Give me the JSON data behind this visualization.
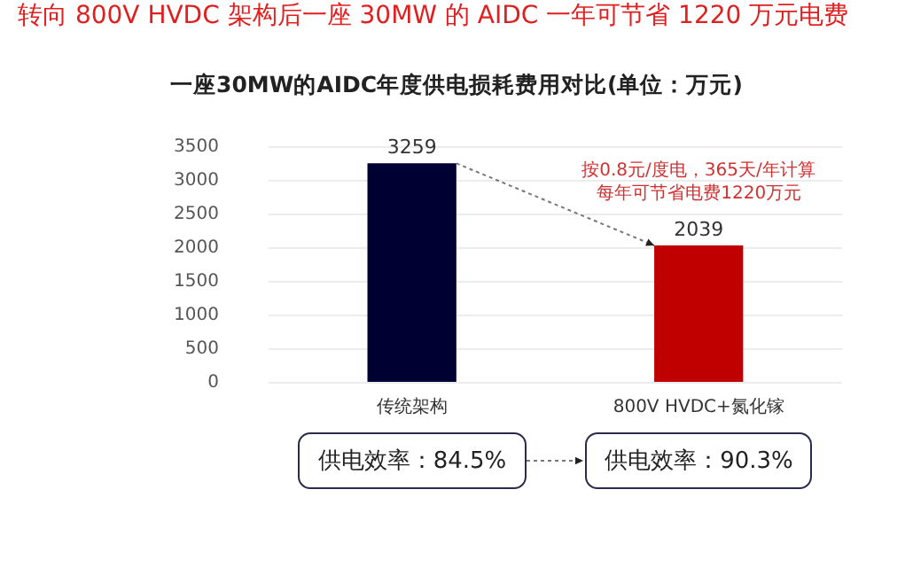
{
  "chart_data": {
    "type": "bar",
    "title": "转向 800V HVDC 架构后一座 30MW 的 AIDC 一年可节省 1220 万元电费",
    "subtitle": "一座30MW的AIDC年度供电损耗费用对比(单位：万元)",
    "categories": [
      "传统架构",
      "800V HVDC+氮化镓"
    ],
    "values": [
      3259,
      2039
    ],
    "colors": [
      "#000033",
      "#c00000"
    ],
    "ylim": [
      0,
      3500
    ],
    "yticks": [
      0,
      500,
      1000,
      1500,
      2000,
      2500,
      3000,
      3500
    ],
    "grid": "y",
    "legend": false,
    "data_labels": true,
    "annotations": [
      "按0.8元/度电，365天/年计算",
      "每年可节省电费1220万元",
      "供电效率：84.5%",
      "供电效率：90.3%"
    ]
  }
}
